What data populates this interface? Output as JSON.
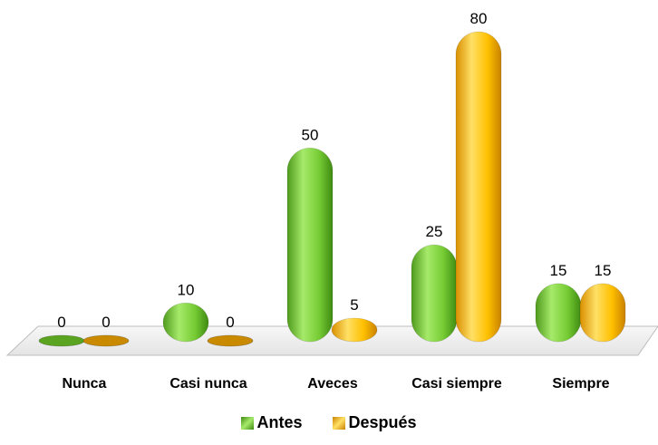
{
  "chart_data": {
    "type": "bar",
    "categories": [
      "Nunca",
      "Casi nunca",
      "Aveces",
      "Casi siempre",
      "Siempre"
    ],
    "series": [
      {
        "name": "Antes",
        "values": [
          0,
          10,
          50,
          25,
          15
        ],
        "color": "#7bd236"
      },
      {
        "name": "Después",
        "values": [
          0,
          0,
          5,
          80,
          15
        ],
        "color": "#ffc000"
      }
    ],
    "ylim": [
      0,
      80
    ],
    "grid": false,
    "legend_position": "bottom",
    "title": "",
    "xlabel": "",
    "ylabel": ""
  }
}
